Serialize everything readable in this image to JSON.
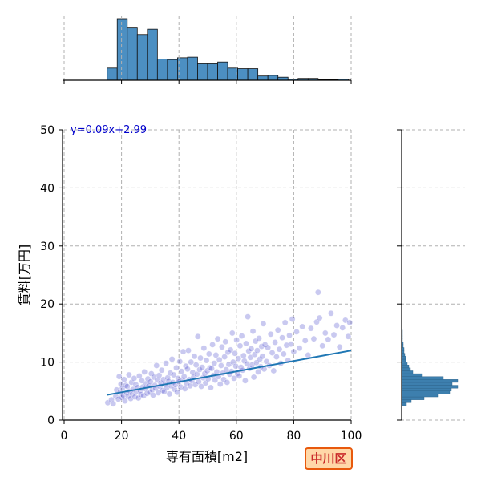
{
  "chart_data": {
    "type": "scatter",
    "xlabel": "専有面積[m2]",
    "ylabel": "賃料[万円]",
    "xlim": [
      0,
      100
    ],
    "ylim": [
      0,
      50
    ],
    "xticks": [
      0,
      20,
      40,
      60,
      80,
      100
    ],
    "yticks": [
      0,
      10,
      20,
      30,
      40,
      50
    ],
    "grid": true,
    "regression": {
      "label": "y=0.09x+2.99",
      "slope": 0.09,
      "intercept": 2.99,
      "x_range": [
        15,
        100
      ]
    },
    "x_hist": {
      "bin_edges": [
        15,
        18.5,
        22,
        25.5,
        29,
        32.5,
        36,
        39.5,
        43,
        46.5,
        50,
        53.5,
        57,
        60.5,
        64,
        67.5,
        71,
        74.5,
        78,
        81.5,
        85,
        88.5,
        92,
        95.5,
        99
      ],
      "counts": [
        20,
        100,
        86,
        74,
        84,
        35,
        34,
        37,
        38,
        27,
        27,
        30,
        20,
        19,
        19,
        7,
        8,
        5,
        2,
        3,
        3,
        1,
        1,
        2
      ]
    },
    "y_hist": {
      "bin_edges": [
        2.5,
        3,
        3.5,
        4,
        4.5,
        5,
        5.5,
        6,
        6.5,
        7,
        7.5,
        8,
        8.5,
        9,
        9.5,
        10,
        10.5,
        11,
        11.5,
        12,
        12.5,
        13,
        13.5,
        14,
        14.5,
        15,
        15.5
      ],
      "counts": [
        6,
        12,
        28,
        45,
        60,
        62,
        70,
        63,
        70,
        52,
        26,
        14,
        11,
        9,
        7,
        5,
        5,
        4,
        3,
        3,
        2,
        2,
        1,
        1,
        1,
        1
      ]
    },
    "points": [
      [
        15.2,
        3.0
      ],
      [
        16.5,
        3.5
      ],
      [
        17.1,
        2.8
      ],
      [
        18.0,
        4.1
      ],
      [
        18.3,
        5.2
      ],
      [
        18.9,
        3.6
      ],
      [
        19.2,
        7.5
      ],
      [
        19.5,
        4.8
      ],
      [
        19.8,
        6.2
      ],
      [
        20.1,
        3.9
      ],
      [
        20.3,
        5.5
      ],
      [
        20.6,
        4.3
      ],
      [
        20.9,
        7.0
      ],
      [
        21.2,
        3.3
      ],
      [
        21.5,
        6.0
      ],
      [
        21.8,
        4.7
      ],
      [
        22.0,
        5.8
      ],
      [
        22.3,
        4.1
      ],
      [
        22.6,
        7.8
      ],
      [
        22.9,
        5.0
      ],
      [
        23.2,
        3.7
      ],
      [
        23.5,
        6.5
      ],
      [
        23.8,
        4.5
      ],
      [
        24.1,
        5.3
      ],
      [
        24.4,
        7.2
      ],
      [
        24.7,
        4.0
      ],
      [
        25.0,
        6.1
      ],
      [
        25.3,
        4.9
      ],
      [
        25.6,
        5.6
      ],
      [
        25.9,
        3.8
      ],
      [
        26.2,
        7.6
      ],
      [
        26.5,
        5.1
      ],
      [
        26.8,
        4.4
      ],
      [
        27.1,
        6.8
      ],
      [
        27.4,
        5.7
      ],
      [
        27.7,
        4.2
      ],
      [
        28.0,
        8.3
      ],
      [
        28.3,
        5.4
      ],
      [
        28.6,
        6.3
      ],
      [
        28.9,
        4.6
      ],
      [
        29.2,
        7.1
      ],
      [
        29.5,
        5.9
      ],
      [
        29.8,
        4.8
      ],
      [
        30.1,
        6.6
      ],
      [
        30.4,
        8.0
      ],
      [
        30.7,
        5.2
      ],
      [
        31.0,
        4.3
      ],
      [
        31.3,
        7.4
      ],
      [
        31.6,
        6.0
      ],
      [
        31.9,
        5.5
      ],
      [
        32.2,
        9.4
      ],
      [
        32.5,
        6.9
      ],
      [
        32.8,
        4.7
      ],
      [
        33.1,
        7.7
      ],
      [
        33.4,
        5.8
      ],
      [
        33.7,
        6.4
      ],
      [
        34.0,
        8.6
      ],
      [
        34.3,
        5.1
      ],
      [
        34.6,
        7.0
      ],
      [
        34.9,
        4.9
      ],
      [
        35.2,
        6.2
      ],
      [
        35.5,
        9.8
      ],
      [
        35.8,
        5.6
      ],
      [
        36.1,
        7.3
      ],
      [
        36.4,
        6.7
      ],
      [
        36.7,
        4.5
      ],
      [
        37.0,
        8.1
      ],
      [
        37.3,
        5.9
      ],
      [
        37.6,
        10.5
      ],
      [
        37.9,
        6.5
      ],
      [
        38.2,
        7.8
      ],
      [
        38.5,
        5.3
      ],
      [
        38.8,
        6.1
      ],
      [
        39.1,
        9.0
      ],
      [
        39.4,
        4.8
      ],
      [
        39.7,
        7.2
      ],
      [
        40.0,
        6.6
      ],
      [
        40.3,
        10.1
      ],
      [
        40.6,
        5.7
      ],
      [
        40.9,
        8.4
      ],
      [
        41.2,
        6.9
      ],
      [
        41.5,
        11.8
      ],
      [
        41.8,
        7.5
      ],
      [
        42.1,
        5.4
      ],
      [
        42.4,
        9.3
      ],
      [
        42.7,
        6.3
      ],
      [
        43.0,
        8.8
      ],
      [
        43.3,
        12.0
      ],
      [
        43.6,
        7.0
      ],
      [
        43.9,
        5.9
      ],
      [
        44.2,
        10.0
      ],
      [
        44.5,
        6.8
      ],
      [
        44.8,
        8.2
      ],
      [
        45.1,
        7.4
      ],
      [
        45.4,
        11.0
      ],
      [
        45.7,
        6.1
      ],
      [
        46.0,
        9.5
      ],
      [
        46.3,
        7.9
      ],
      [
        46.6,
        14.4
      ],
      [
        46.9,
        6.6
      ],
      [
        47.2,
        8.7
      ],
      [
        47.5,
        10.7
      ],
      [
        47.8,
        5.8
      ],
      [
        48.1,
        9.1
      ],
      [
        48.4,
        7.3
      ],
      [
        48.7,
        12.4
      ],
      [
        49.0,
        8.0
      ],
      [
        49.3,
        6.4
      ],
      [
        49.6,
        10.3
      ],
      [
        49.9,
        8.5
      ],
      [
        50.2,
        7.1
      ],
      [
        50.5,
        11.4
      ],
      [
        50.8,
        9.0
      ],
      [
        51.1,
        5.6
      ],
      [
        51.4,
        8.9
      ],
      [
        51.7,
        13.0
      ],
      [
        52.0,
        7.7
      ],
      [
        52.3,
        9.8
      ],
      [
        52.6,
        6.9
      ],
      [
        52.9,
        11.2
      ],
      [
        53.2,
        8.3
      ],
      [
        53.5,
        14.0
      ],
      [
        53.8,
        7.5
      ],
      [
        54.1,
        10.4
      ],
      [
        54.4,
        6.2
      ],
      [
        54.7,
        9.4
      ],
      [
        55.0,
        12.6
      ],
      [
        55.3,
        8.1
      ],
      [
        55.6,
        7.0
      ],
      [
        55.9,
        10.9
      ],
      [
        56.2,
        13.5
      ],
      [
        56.5,
        8.7
      ],
      [
        56.8,
        6.5
      ],
      [
        57.1,
        11.7
      ],
      [
        57.4,
        9.6
      ],
      [
        57.7,
        7.9
      ],
      [
        58.0,
        12.1
      ],
      [
        58.3,
        8.4
      ],
      [
        58.6,
        15.0
      ],
      [
        58.9,
        10.0
      ],
      [
        59.2,
        7.2
      ],
      [
        59.5,
        11.5
      ],
      [
        59.8,
        9.3
      ],
      [
        60.1,
        13.8
      ],
      [
        60.4,
        8.0
      ],
      [
        60.7,
        10.6
      ],
      [
        61.0,
        7.6
      ],
      [
        61.3,
        12.8
      ],
      [
        61.6,
        9.1
      ],
      [
        61.9,
        14.5
      ],
      [
        62.2,
        8.6
      ],
      [
        62.5,
        11.1
      ],
      [
        62.8,
        10.2
      ],
      [
        63.1,
        6.8
      ],
      [
        63.4,
        13.2
      ],
      [
        63.7,
        9.7
      ],
      [
        64.0,
        17.8
      ],
      [
        64.3,
        11.9
      ],
      [
        64.6,
        8.9
      ],
      [
        64.9,
        10.8
      ],
      [
        65.2,
        12.3
      ],
      [
        65.5,
        9.5
      ],
      [
        65.8,
        15.3
      ],
      [
        66.1,
        7.4
      ],
      [
        66.4,
        11.3
      ],
      [
        66.7,
        13.6
      ],
      [
        67.0,
        9.9
      ],
      [
        67.3,
        12.0
      ],
      [
        67.6,
        8.3
      ],
      [
        67.9,
        14.1
      ],
      [
        68.2,
        10.5
      ],
      [
        68.5,
        9.2
      ],
      [
        68.8,
        12.7
      ],
      [
        69.1,
        11.0
      ],
      [
        69.4,
        16.6
      ],
      [
        69.7,
        8.8
      ],
      [
        70.0,
        13.0
      ],
      [
        70.5,
        10.1
      ],
      [
        71.0,
        12.5
      ],
      [
        71.5,
        9.4
      ],
      [
        72.0,
        14.8
      ],
      [
        72.5,
        11.6
      ],
      [
        73.0,
        8.5
      ],
      [
        73.5,
        13.4
      ],
      [
        74.0,
        10.9
      ],
      [
        74.5,
        15.5
      ],
      [
        75.0,
        12.2
      ],
      [
        75.5,
        9.8
      ],
      [
        76.0,
        14.2
      ],
      [
        76.5,
        11.4
      ],
      [
        77.0,
        16.8
      ],
      [
        77.5,
        12.9
      ],
      [
        78.0,
        10.3
      ],
      [
        78.5,
        14.6
      ],
      [
        79.0,
        13.1
      ],
      [
        79.5,
        17.4
      ],
      [
        80.0,
        11.8
      ],
      [
        81.0,
        15.2
      ],
      [
        82.0,
        12.4
      ],
      [
        83.0,
        16.1
      ],
      [
        84.0,
        13.7
      ],
      [
        85.0,
        11.2
      ],
      [
        86.0,
        15.8
      ],
      [
        87.0,
        14.0
      ],
      [
        88.0,
        16.9
      ],
      [
        88.5,
        22.0
      ],
      [
        89.0,
        17.6
      ],
      [
        90.0,
        12.8
      ],
      [
        91.0,
        15.0
      ],
      [
        92.0,
        13.9
      ],
      [
        93.0,
        18.4
      ],
      [
        94.0,
        14.7
      ],
      [
        95.0,
        16.3
      ],
      [
        96.0,
        12.6
      ],
      [
        97.0,
        15.9
      ],
      [
        98.0,
        17.2
      ],
      [
        99.0,
        14.4
      ],
      [
        99.5,
        16.8
      ]
    ]
  },
  "badge": {
    "label": "中川区"
  }
}
